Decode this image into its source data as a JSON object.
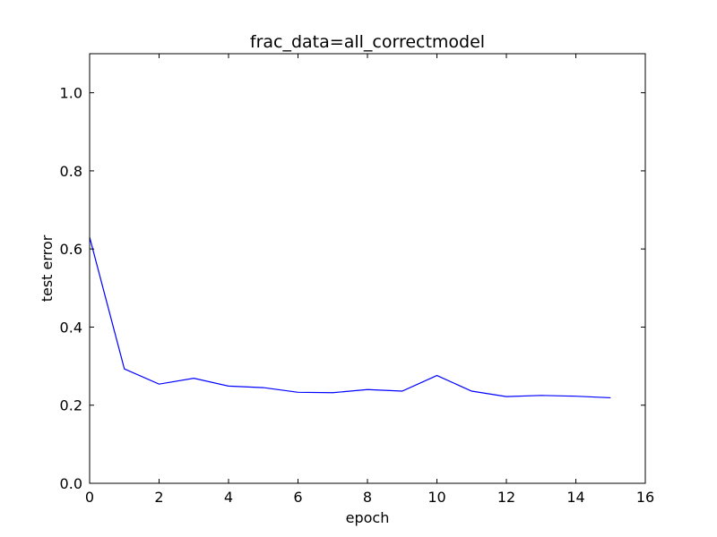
{
  "chart_data": {
    "type": "line",
    "title": "frac_data=all_correctmodel",
    "xlabel": "epoch",
    "ylabel": "test error",
    "xlim": [
      0,
      16
    ],
    "ylim": [
      0.0,
      1.1
    ],
    "xticks": [
      0,
      2,
      4,
      6,
      8,
      10,
      12,
      14,
      16
    ],
    "xtick_labels": [
      "0",
      "2",
      "4",
      "6",
      "8",
      "10",
      "12",
      "14",
      "16"
    ],
    "yticks": [
      0.0,
      0.2,
      0.4,
      0.6,
      0.8,
      1.0
    ],
    "ytick_labels": [
      "0.0",
      "0.2",
      "0.4",
      "0.6",
      "0.8",
      "1.0"
    ],
    "grid": false,
    "series": [
      {
        "color": "#0000ff",
        "x": [
          0,
          1,
          2,
          3,
          4,
          5,
          6,
          7,
          8,
          9,
          10,
          11,
          12,
          13,
          14,
          15
        ],
        "y": [
          0.63,
          0.293,
          0.254,
          0.269,
          0.249,
          0.245,
          0.233,
          0.232,
          0.24,
          0.236,
          0.276,
          0.236,
          0.222,
          0.225,
          0.223,
          0.219
        ]
      }
    ]
  }
}
